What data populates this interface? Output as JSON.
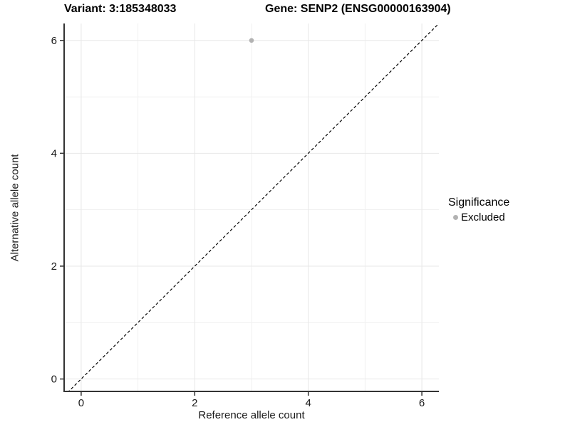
{
  "titles": {
    "left": "Variant: 3:185348033",
    "right": "Gene: SENP2 (ENSG00000163904)"
  },
  "legend": {
    "title": "Significance",
    "items": [
      {
        "label": "Excluded",
        "color": "#b2b2b2"
      }
    ]
  },
  "chart_data": {
    "type": "scatter",
    "xlabel": "Reference allele count",
    "ylabel": "Alternative allele count",
    "series": [
      {
        "name": "Excluded",
        "color": "#b2b2b2",
        "points": [
          {
            "x": 3,
            "y": 6
          }
        ]
      }
    ],
    "x_ticks": [
      0,
      2,
      4,
      6
    ],
    "y_ticks": [
      0,
      2,
      4,
      6
    ],
    "x_minor_ticks": [
      1,
      3,
      5
    ],
    "y_minor_ticks": [
      1,
      3,
      5
    ],
    "xlim": [
      -0.3,
      6.3
    ],
    "ylim": [
      -0.22,
      6.3
    ],
    "grid": true,
    "legend_position": "right",
    "identity_line": {
      "style": "dashed",
      "slope": 1,
      "intercept": 0
    },
    "point_radius": 3.3,
    "colors": {
      "axis_line": "#333333",
      "tick_mark": "#333333",
      "tick_label": "#1a1a1a",
      "grid_major": "#e7e7e7",
      "grid_minor": "#f1f1f1",
      "identity_line": "#000000"
    }
  }
}
